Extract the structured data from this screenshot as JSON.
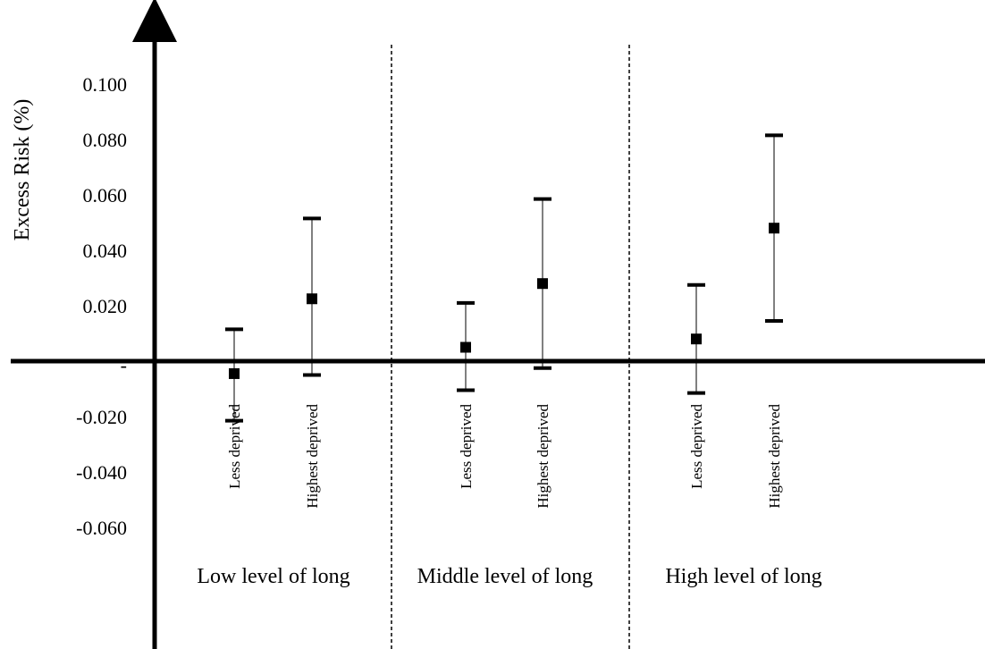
{
  "chart_data": {
    "type": "errorbar",
    "title": "",
    "ylabel": "Excess Risk (%)",
    "xlabel": "",
    "ylim": [
      -0.06,
      0.1
    ],
    "grid": false,
    "legend": "none",
    "yticks": [
      {
        "value": 0.1,
        "label": "0.100"
      },
      {
        "value": 0.08,
        "label": "0.080"
      },
      {
        "value": 0.06,
        "label": "0.060"
      },
      {
        "value": 0.04,
        "label": "0.040"
      },
      {
        "value": 0.02,
        "label": "0.020"
      },
      {
        "value": 0.0,
        "label": "-"
      },
      {
        "value": -0.02,
        "label": "-0.020"
      },
      {
        "value": -0.04,
        "label": "-0.040"
      },
      {
        "value": -0.06,
        "label": "-0.060"
      }
    ],
    "groups": [
      {
        "label": "Low level of long",
        "points": [
          {
            "category": "Less deprived",
            "estimate": -0.0045,
            "lower": -0.0215,
            "upper": 0.0115
          },
          {
            "category": "Highest deprived",
            "estimate": 0.0225,
            "lower": -0.005,
            "upper": 0.0515
          }
        ]
      },
      {
        "label": "Middle level of long",
        "points": [
          {
            "category": "Less deprived",
            "estimate": 0.005,
            "lower": -0.0105,
            "upper": 0.021
          },
          {
            "category": "Highest deprived",
            "estimate": 0.028,
            "lower": -0.0025,
            "upper": 0.0585
          }
        ]
      },
      {
        "label": "High level of long",
        "points": [
          {
            "category": "Less deprived",
            "estimate": 0.008,
            "lower": -0.0115,
            "upper": 0.0275
          },
          {
            "category": "Highest deprived",
            "estimate": 0.048,
            "lower": 0.0145,
            "upper": 0.0815
          }
        ]
      }
    ]
  }
}
